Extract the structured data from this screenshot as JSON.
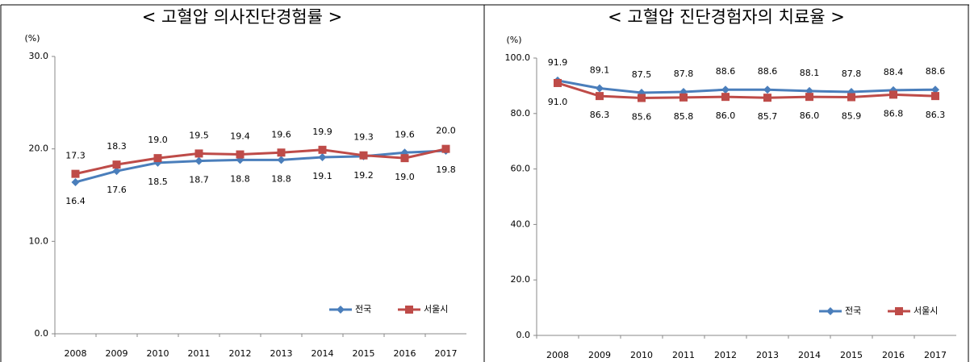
{
  "chart_data": [
    {
      "type": "line",
      "title": "< 고혈압 의사진단경험률 >",
      "y_label": "(%)",
      "categories": [
        "2008",
        "2009",
        "2010",
        "2011",
        "2012",
        "2013",
        "2014",
        "2015",
        "2016",
        "2017"
      ],
      "ylim": [
        0,
        30
      ],
      "yticks": [
        {
          "value": 0,
          "label": "0.0"
        },
        {
          "value": 10,
          "label": "10.0"
        },
        {
          "value": 20,
          "label": "20.0"
        },
        {
          "value": 30,
          "label": "30.0"
        }
      ],
      "legend": "lower right",
      "series": [
        {
          "name": "전국",
          "color": "#4a7ebb",
          "marker": "diamond",
          "values": [
            16.4,
            17.6,
            18.5,
            18.7,
            18.8,
            18.8,
            19.1,
            19.2,
            19.6,
            19.8
          ],
          "value_labels": [
            "16.4",
            "17.6",
            "18.5",
            "18.7",
            "18.8",
            "18.8",
            "19.1",
            "19.2",
            "19.6",
            "19.8"
          ]
        },
        {
          "name": "서울시",
          "color": "#be4b48",
          "marker": "square",
          "values": [
            17.3,
            18.3,
            19.0,
            19.5,
            19.4,
            19.6,
            19.9,
            19.3,
            19.0,
            20.0
          ],
          "value_labels": [
            "17.3",
            "18.3",
            "19.0",
            "19.5",
            "19.4",
            "19.6",
            "19.9",
            "19.3",
            "19.0",
            "20.0"
          ]
        }
      ]
    },
    {
      "type": "line",
      "title": "< 고혈압 진단경험자의 치료율 >",
      "y_label": "(%)",
      "categories": [
        "2008",
        "2009",
        "2010",
        "2011",
        "2012",
        "2013",
        "2014",
        "2015",
        "2016",
        "2017"
      ],
      "ylim": [
        0,
        100
      ],
      "yticks": [
        {
          "value": 0,
          "label": "0.0"
        },
        {
          "value": 20,
          "label": "20.0"
        },
        {
          "value": 40,
          "label": "40.0"
        },
        {
          "value": 60,
          "label": "60.0"
        },
        {
          "value": 80,
          "label": "80.0"
        },
        {
          "value": 100,
          "label": "100.0"
        }
      ],
      "legend": "lower right",
      "series": [
        {
          "name": "전국",
          "color": "#4a7ebb",
          "marker": "diamond",
          "values": [
            91.9,
            89.1,
            87.5,
            87.8,
            88.6,
            88.6,
            88.1,
            87.8,
            88.4,
            88.6
          ],
          "value_labels": [
            "91.9",
            "89.1",
            "87.5",
            "87.8",
            "88.6",
            "88.6",
            "88.1",
            "87.8",
            "88.4",
            "88.6"
          ]
        },
        {
          "name": "서울시",
          "color": "#be4b48",
          "marker": "square",
          "values": [
            91.0,
            86.3,
            85.6,
            85.8,
            86.0,
            85.7,
            86.0,
            85.9,
            86.8,
            86.3
          ],
          "value_labels": [
            "91.0",
            "86.3",
            "85.6",
            "85.8",
            "86.0",
            "85.7",
            "86.0",
            "85.9",
            "86.8",
            "86.3"
          ]
        }
      ]
    }
  ]
}
